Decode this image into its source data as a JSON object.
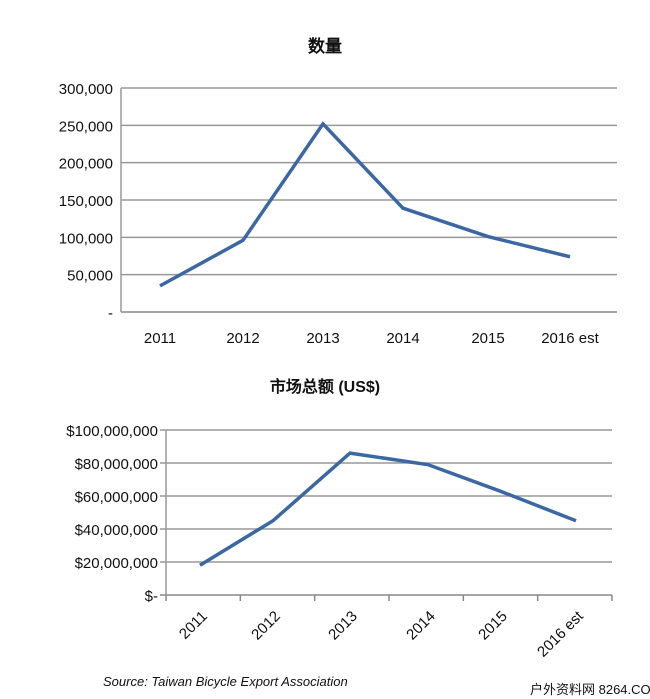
{
  "chart_data": [
    {
      "type": "line",
      "title": "数量",
      "categories": [
        "2011",
        "2012",
        "2013",
        "2014",
        "2015",
        "2016 est"
      ],
      "values": [
        35000,
        96000,
        252000,
        139000,
        101000,
        74000
      ],
      "ylim": [
        0,
        300000
      ],
      "yticks": [
        0,
        50000,
        100000,
        150000,
        200000,
        250000,
        300000
      ],
      "ytick_labels": [
        "-",
        "50,000",
        "100,000",
        "150,000",
        "200,000",
        "250,000",
        "300,000"
      ],
      "grid": true,
      "color": "#3b67a3"
    },
    {
      "type": "line",
      "title": "市场总额 (US$)",
      "categories": [
        "2011",
        "2012",
        "2013",
        "2014",
        "2015",
        "2016 est"
      ],
      "values": [
        18000000,
        45000000,
        86000000,
        79000000,
        63000000,
        45000000
      ],
      "ylim": [
        0,
        100000000
      ],
      "yticks": [
        0,
        20000000,
        40000000,
        60000000,
        80000000,
        100000000
      ],
      "ytick_labels": [
        "$-",
        "$20,000,000",
        "$40,000,000",
        "$60,000,000",
        "$80,000,000",
        "$100,000,000"
      ],
      "grid": true,
      "color": "#3b67a3"
    }
  ],
  "source": "Source: Taiwan Bicycle Export Association",
  "watermark": "户外资料网 8264.COM"
}
